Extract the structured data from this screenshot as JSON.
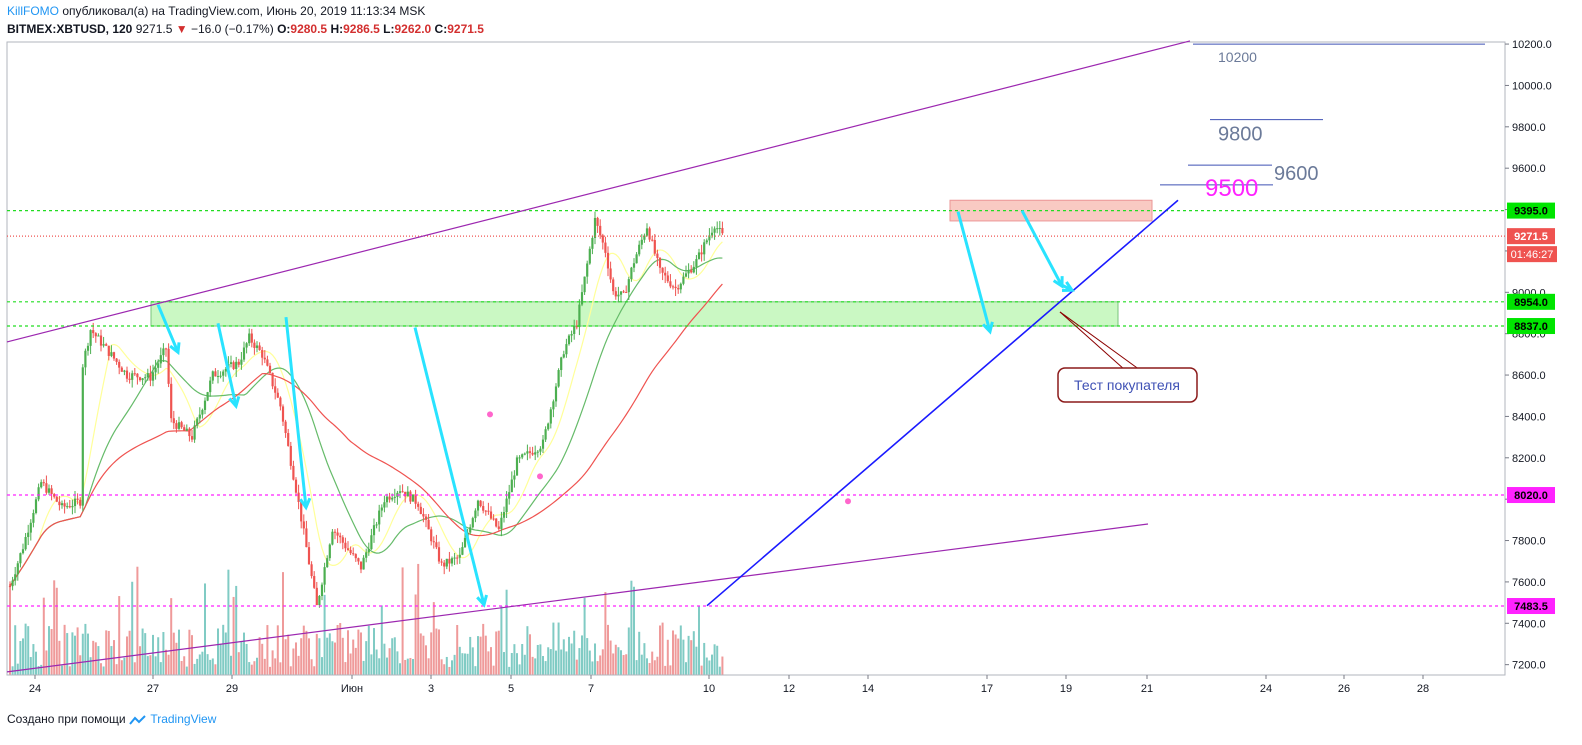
{
  "header": {
    "author": "KillFOMO",
    "published_text": "опубликовал(а) на TradingView.com, Июнь 20, 2019 11:13:34 MSK",
    "symbol_interval": "BITMEX:XBTUSD, 120",
    "last_price": "9271.5",
    "change_arrow": "▼",
    "change": "−16.0 (−0.17%)",
    "o_label": "O:",
    "o_value": "9280.5",
    "h_label": "H:",
    "h_value": "9286.5",
    "l_label": "L:",
    "l_value": "9262.0",
    "c_label": "C:",
    "c_value": "9271.5"
  },
  "footer": {
    "text": "Создано при помощи",
    "brand": "TradingView"
  },
  "colors": {
    "up": "#4caf50",
    "down": "#ef5350",
    "vol_up": "#80cbc4",
    "vol_down": "#ef9a9a",
    "channel": "#9c27b0",
    "trend": "#1a1aff",
    "cyan": "#29e3ff",
    "ma_yellow": "#ffff99",
    "ma_green": "#66bb6a",
    "ma_red": "#ef5350",
    "green_level": "#22dd22",
    "magenta_level": "#ff22ff",
    "red_level": "#ef5350"
  },
  "chart_data": {
    "type": "candlestick",
    "title": "BITMEX:XBTUSD, 120",
    "xlabel": "",
    "ylabel": "",
    "ylim": [
      7150,
      10210
    ],
    "y_ticks": [
      "10200.0",
      "10000.0",
      "9800.0",
      "9600.0",
      "9400.0",
      "9200.0",
      "9000.0",
      "8800.0",
      "8600.0",
      "8400.0",
      "8200.0",
      "8000.0",
      "7800.0",
      "7600.0",
      "7400.0",
      "7200.0"
    ],
    "x_ticks": [
      "24",
      "27",
      "29",
      "Июн",
      "3",
      "5",
      "7",
      "10",
      "12",
      "14",
      "17",
      "19",
      "21",
      "24",
      "26",
      "28"
    ],
    "price_path": [
      [
        0,
        7580
      ],
      [
        5,
        7770
      ],
      [
        12,
        8080
      ],
      [
        20,
        7960
      ],
      [
        27,
        7990
      ],
      [
        28,
        8650
      ],
      [
        31,
        8820
      ],
      [
        40,
        8680
      ],
      [
        45,
        8600
      ],
      [
        54,
        8590
      ],
      [
        60,
        8730
      ],
      [
        62,
        8380
      ],
      [
        70,
        8300
      ],
      [
        78,
        8600
      ],
      [
        88,
        8660
      ],
      [
        92,
        8780
      ],
      [
        97,
        8700
      ],
      [
        104,
        8450
      ],
      [
        110,
        8050
      ],
      [
        118,
        7480
      ],
      [
        124,
        7860
      ],
      [
        135,
        7670
      ],
      [
        144,
        8000
      ],
      [
        150,
        8050
      ],
      [
        157,
        7980
      ],
      [
        166,
        7680
      ],
      [
        173,
        7720
      ],
      [
        180,
        8000
      ],
      [
        188,
        7850
      ],
      [
        195,
        8180
      ],
      [
        205,
        8270
      ],
      [
        213,
        8720
      ],
      [
        218,
        8850
      ],
      [
        225,
        9350
      ],
      [
        229,
        9200
      ],
      [
        232,
        9000
      ],
      [
        236,
        8980
      ],
      [
        240,
        9150
      ],
      [
        245,
        9320
      ],
      [
        250,
        9100
      ],
      [
        256,
        9020
      ],
      [
        264,
        9150
      ],
      [
        271,
        9330
      ],
      [
        274,
        9272
      ]
    ],
    "levels": [
      {
        "label": "9395.0",
        "value": 9395.0,
        "color": "green"
      },
      {
        "label": "8954.0",
        "value": 8954.0,
        "color": "green"
      },
      {
        "label": "8837.0",
        "value": 8837.0,
        "color": "green"
      },
      {
        "label": "8020.0",
        "value": 8020.0,
        "color": "magenta"
      },
      {
        "label": "7483.5",
        "value": 7483.5,
        "color": "magenta"
      },
      {
        "label": "9271.5",
        "value": 9271.5,
        "color": "red"
      }
    ],
    "countdown": "01:46:27",
    "targets": [
      {
        "label": "10200",
        "value": 10185,
        "color": "#6b7a99",
        "size": "plain"
      },
      {
        "label": "9800",
        "value": 9820,
        "color": "#6b7a99",
        "size": "large"
      },
      {
        "label": "9600",
        "value": 9600,
        "color": "#6b7a99",
        "size": "large"
      },
      {
        "label": "9500",
        "value": 9505,
        "color": "#ff22ff",
        "size": "xlarge"
      }
    ],
    "annotation": "Тест покупателя"
  }
}
